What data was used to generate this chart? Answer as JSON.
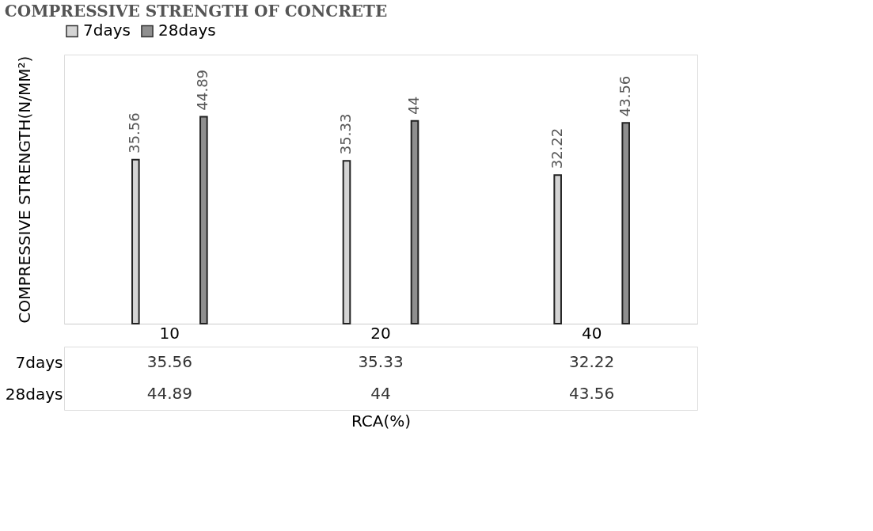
{
  "chart_data": {
    "type": "bar",
    "title": "COMPRESSIVE STRENGTH OF CONCRETE",
    "ylabel": "COMPRESSIVE STRENGTH(N/MM²)",
    "xlabel": "RCA(%)",
    "categories": [
      "10",
      "20",
      "40"
    ],
    "series": [
      {
        "name": "7days",
        "color": "#d4d4d4",
        "values": [
          35.56,
          35.33,
          32.22
        ]
      },
      {
        "name": "28days",
        "color": "#8f8f8f",
        "values": [
          44.89,
          44,
          43.56
        ]
      }
    ],
    "annotations": [
      "35.56",
      "35.33",
      "32.22",
      "44.89",
      "44",
      "43.56"
    ],
    "data_labels": true,
    "legend": "top",
    "grid": false
  }
}
